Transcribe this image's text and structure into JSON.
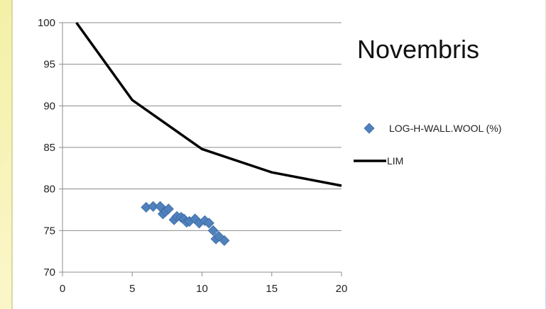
{
  "chart_data": {
    "type": "scatter",
    "title": "Novembris",
    "xlabel": "",
    "ylabel": "",
    "xlim": [
      0,
      20
    ],
    "ylim": [
      70,
      100
    ],
    "xticks": [
      0,
      5,
      10,
      15,
      20
    ],
    "yticks": [
      70,
      75,
      80,
      85,
      90,
      95,
      100
    ],
    "grid": "horizontal",
    "legend_position": "right",
    "series": [
      {
        "name": "LOG-H-WALL.WOOL (%)",
        "kind": "scatter",
        "marker": "diamond",
        "color": "#4f81bd",
        "x": [
          6.0,
          6.5,
          7.0,
          7.2,
          7.4,
          7.6,
          8.0,
          8.2,
          8.5,
          8.7,
          8.9,
          9.1,
          9.5,
          9.8,
          10.2,
          10.5,
          10.8,
          11.0,
          11.2,
          11.6
        ],
        "y": [
          77.8,
          77.9,
          77.9,
          77.0,
          77.3,
          77.6,
          76.3,
          76.7,
          76.6,
          76.4,
          76.0,
          76.1,
          76.4,
          75.9,
          76.2,
          75.9,
          75.0,
          74.0,
          74.3,
          73.8
        ]
      },
      {
        "name": "LIM",
        "kind": "line",
        "color": "#000000",
        "x": [
          1,
          5,
          10,
          15,
          20
        ],
        "y": [
          100,
          90.7,
          84.8,
          82.0,
          80.4
        ]
      }
    ]
  }
}
